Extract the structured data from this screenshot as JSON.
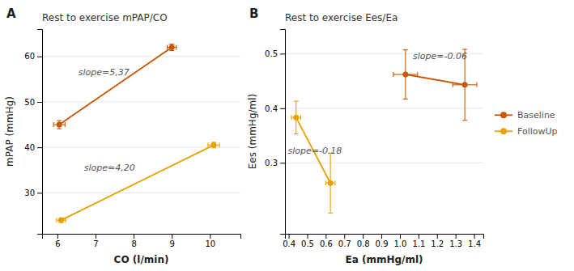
{
  "chart_data": [
    {
      "type": "line",
      "panel_label": "A",
      "title": "Rest to exercise mPAP/CO",
      "x_label": "CO (l/min)",
      "y_label": "mPAP (mmHg)",
      "series": [
        {
          "name": "Baseline",
          "color": "#cc5500",
          "marker": "circle",
          "x": [
            6.05,
            9.0
          ],
          "values": [
            45.0,
            62.0
          ],
          "xerr": [
            0.15,
            0.12
          ],
          "yerr": [
            0.9,
            0.7
          ]
        },
        {
          "name": "FollowUp",
          "color": "#e8a000",
          "marker": "circle",
          "x": [
            6.1,
            10.1
          ],
          "values": [
            24.0,
            40.5
          ],
          "xerr": [
            0.12,
            0.15
          ],
          "yerr": [
            0.5,
            0.6
          ]
        }
      ],
      "annotations": [
        {
          "text": "slope=5,37",
          "x": 6.55,
          "y": 56.5
        },
        {
          "text": "slope=4,20",
          "x": 6.7,
          "y": 35.5
        }
      ],
      "xlim": [
        5.6,
        10.8
      ],
      "ylim": [
        21,
        66
      ],
      "xticks": [
        6,
        7,
        8,
        9,
        10
      ],
      "yticks": [
        30,
        40,
        50,
        60
      ],
      "grid": "y"
    },
    {
      "type": "line",
      "panel_label": "B",
      "title": "Rest to exercise Ees/Ea",
      "x_label": "Ea (mmHg/ml)",
      "y_label": "Ees (mmHg/ml)",
      "series": [
        {
          "name": "Baseline",
          "color": "#cc5500",
          "marker": "circle",
          "x": [
            1.03,
            1.35
          ],
          "values": [
            0.462,
            0.443
          ],
          "xerr": [
            0.065,
            0.065
          ],
          "yerr": [
            0.045,
            0.065
          ]
        },
        {
          "name": "FollowUp",
          "color": "#e8a000",
          "marker": "circle",
          "x": [
            0.44,
            0.625
          ],
          "values": [
            0.383,
            0.263
          ],
          "xerr": [
            0.025,
            0.025
          ],
          "yerr": [
            0.03,
            0.055
          ]
        }
      ],
      "annotations": [
        {
          "text": "slope=-0.06",
          "x": 1.07,
          "y": 0.496
        },
        {
          "text": "slope=-0.18",
          "x": 0.395,
          "y": 0.323
        }
      ],
      "xlim": [
        0.38,
        1.45
      ],
      "ylim": [
        0.17,
        0.545
      ],
      "xticks": [
        0.4,
        0.5,
        0.6,
        0.7,
        0.8,
        0.9,
        {
          "value": 1.0,
          "label": "1.0"
        },
        1.1,
        1.2,
        1.3,
        1.4
      ],
      "yticks": [
        0.3,
        0.4,
        0.5
      ],
      "grid": "y",
      "legend": "right"
    }
  ]
}
